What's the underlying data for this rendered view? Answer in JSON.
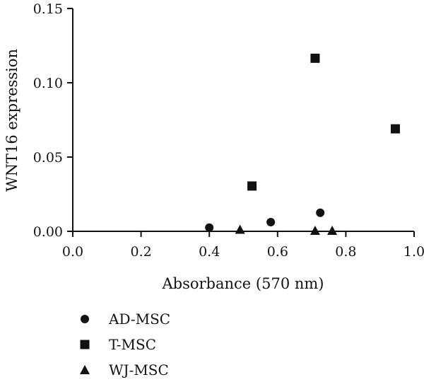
{
  "chart_data": {
    "type": "scatter",
    "title": "",
    "xlabel": "Absorbance (570 nm)",
    "ylabel": "WNT16 expression",
    "xlim": [
      0,
      1.0
    ],
    "ylim": [
      0,
      0.15
    ],
    "x_ticks": [
      "0.0",
      "0.2",
      "0.4",
      "0.6",
      "0.8",
      "1.0"
    ],
    "y_ticks": [
      "0.00",
      "0.05",
      "0.10",
      "0.15"
    ],
    "grid": false,
    "legend_position": "bottom-left",
    "series": [
      {
        "name": "AD-MSC",
        "marker": "circle",
        "points": [
          {
            "x": 0.4,
            "y": 0.0025
          },
          {
            "x": 0.58,
            "y": 0.0062
          },
          {
            "x": 0.725,
            "y": 0.0125
          }
        ]
      },
      {
        "name": "T-MSC",
        "marker": "square",
        "points": [
          {
            "x": 0.525,
            "y": 0.0305
          },
          {
            "x": 0.71,
            "y": 0.1165
          },
          {
            "x": 0.945,
            "y": 0.069
          }
        ]
      },
      {
        "name": "WJ-MSC",
        "marker": "triangle",
        "points": [
          {
            "x": 0.49,
            "y": 0.0012
          },
          {
            "x": 0.71,
            "y": 0.0005
          },
          {
            "x": 0.76,
            "y": 0.0005
          }
        ]
      }
    ]
  }
}
